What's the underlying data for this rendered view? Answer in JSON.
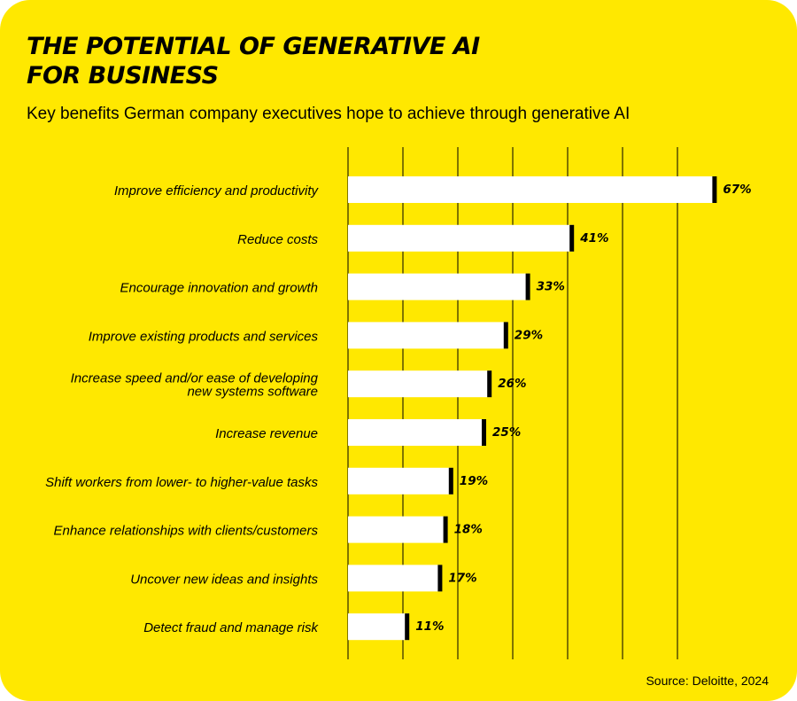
{
  "header": {
    "title_line1": "THE POTENTIAL OF GENERATIVE AI",
    "title_line2": "FOR BUSINESS",
    "subtitle": "Key benefits German company executives hope to achieve through generative AI"
  },
  "footer": {
    "source": "Source: Deloitte, 2024"
  },
  "colors": {
    "background": "#ffe800",
    "bar_fill": "#ffffff",
    "bar_end": "#000000",
    "gridline": "#000000"
  },
  "chart_data": {
    "type": "bar",
    "orientation": "horizontal",
    "categories": [
      [
        "Improve efficiency and productivity"
      ],
      [
        "Reduce costs"
      ],
      [
        "Encourage innovation and growth"
      ],
      [
        "Improve existing products and services"
      ],
      [
        "Increase speed and/or ease of developing",
        "new systems software"
      ],
      [
        "Increase revenue"
      ],
      [
        "Shift workers from lower- to higher-value tasks"
      ],
      [
        "Enhance relationships with clients/customers"
      ],
      [
        "Uncover new ideas and insights"
      ],
      [
        "Detect fraud and manage risk"
      ]
    ],
    "values": [
      67,
      41,
      33,
      29,
      26,
      25,
      19,
      18,
      17,
      11
    ],
    "value_labels": [
      "67%",
      "41%",
      "33%",
      "29%",
      "26%",
      "25%",
      "19%",
      "18%",
      "17%",
      "11%"
    ],
    "xlim": [
      0,
      70
    ],
    "gridlines": [
      0,
      10,
      20,
      30,
      40,
      50,
      60
    ],
    "grid": true
  }
}
